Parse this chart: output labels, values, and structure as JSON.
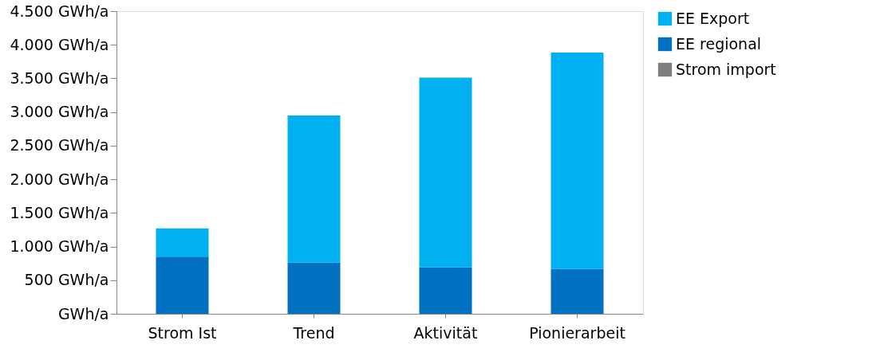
{
  "chart_data": {
    "type": "bar",
    "stacked": true,
    "categories": [
      "Strom Ist",
      "Trend",
      "Aktivität",
      "Pionierarbeit"
    ],
    "series": [
      {
        "name": "Strom import",
        "color": "#7f7f7f",
        "values": [
          0,
          0,
          0,
          0
        ]
      },
      {
        "name": "EE regional",
        "color": "#0070c0",
        "values": [
          850,
          760,
          690,
          665
        ]
      },
      {
        "name": "EE Export",
        "color": "#00b0f0",
        "values": [
          420,
          2190,
          2820,
          3220
        ]
      }
    ],
    "ylim": [
      0,
      4500
    ],
    "yticks": [
      {
        "value": 0,
        "label": "GWh/a"
      },
      {
        "value": 500,
        "label": "500  GWh/a"
      },
      {
        "value": 1000,
        "label": "1.000  GWh/a"
      },
      {
        "value": 1500,
        "label": "1.500  GWh/a"
      },
      {
        "value": 2000,
        "label": "2.000  GWh/a"
      },
      {
        "value": 2500,
        "label": "2.500  GWh/a"
      },
      {
        "value": 3000,
        "label": "3.000  GWh/a"
      },
      {
        "value": 3500,
        "label": "3.500  GWh/a"
      },
      {
        "value": 4000,
        "label": "4.000  GWh/a"
      },
      {
        "value": 4500,
        "label": "4.500  GWh/a"
      }
    ],
    "grid": false,
    "legend": "top right"
  }
}
